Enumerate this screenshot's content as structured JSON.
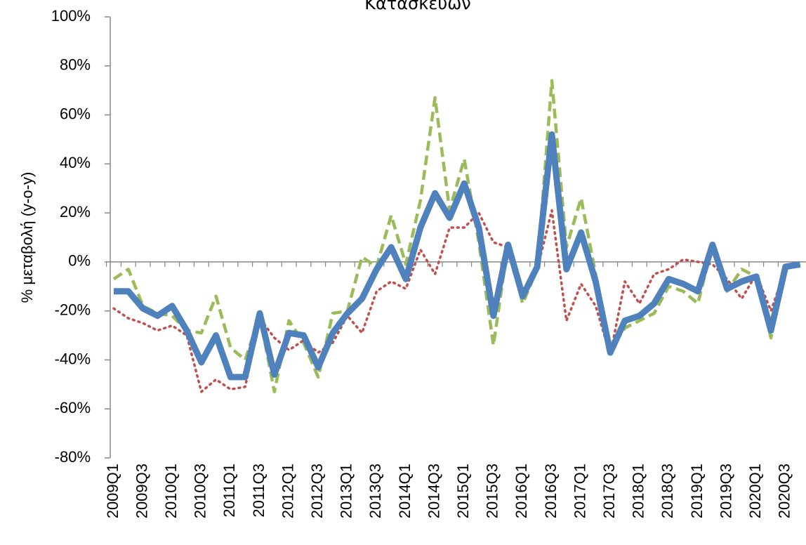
{
  "chart_data": {
    "type": "line",
    "title": "Κατασκευών",
    "y_label": "% μεταβολή (y-o-y)",
    "categories": [
      "2009Q1",
      null,
      "2009Q3",
      null,
      "2010Q1",
      null,
      "2010Q3",
      null,
      "2011Q1",
      null,
      "2011Q3",
      null,
      "2012Q1",
      null,
      "2012Q3",
      null,
      "2013Q1",
      null,
      "2013Q3",
      null,
      "2014Q1",
      null,
      "2014Q3",
      null,
      "2015Q1",
      null,
      "2015Q3",
      null,
      "2016Q1",
      null,
      "2016Q3",
      null,
      "2017Q1",
      null,
      "2017Q3",
      null,
      "2018Q1",
      null,
      "2018Q3",
      null,
      "2019Q1",
      null,
      "2019Q3",
      null,
      "2020Q1",
      null,
      "2020Q3",
      null
    ],
    "series": [
      {
        "color": "#4f81bd",
        "style": "solid",
        "values": [
          -12,
          -12,
          -19,
          -22,
          -18,
          -28,
          -41,
          -30,
          -47,
          -47,
          -21,
          -46,
          -29,
          -30,
          -43,
          -29,
          -21,
          -15,
          -3,
          6,
          -7,
          14,
          28,
          18,
          32,
          14,
          -22,
          7,
          -14,
          -2,
          52,
          -3,
          12,
          -8,
          -37,
          -24,
          -22,
          -17,
          -7,
          -9,
          -12,
          7,
          -11,
          -8,
          -6,
          -28,
          -2,
          -1
        ]
      },
      {
        "color": "#c0504d",
        "style": "dotted",
        "values": [
          -19,
          -23,
          -25,
          -28,
          -26,
          -30,
          -53,
          -48,
          -52,
          -51,
          -23,
          -31,
          -36,
          -32,
          -37,
          -33,
          -22,
          -29,
          -12,
          -8,
          -11,
          5,
          -5,
          14,
          14,
          20,
          8,
          6,
          -13,
          -3,
          21,
          -24,
          -9,
          -18,
          -38,
          -8,
          -17,
          -5,
          -3,
          1,
          0,
          -1,
          -7,
          -15,
          -5,
          -20,
          -3,
          -1
        ]
      },
      {
        "color": "#9bbb59",
        "style": "dashed",
        "values": [
          -7,
          -3,
          -18,
          -21,
          -22,
          -28,
          -29,
          -14,
          -35,
          -40,
          -22,
          -53,
          -24,
          -33,
          -47,
          -21,
          -20,
          2,
          -2,
          19,
          -1,
          25,
          67,
          21,
          42,
          8,
          -34,
          7,
          -17,
          -3,
          74,
          6,
          26,
          -5,
          -36,
          -27,
          -24,
          -21,
          -10,
          -12,
          -17,
          7,
          -12,
          -3,
          -6,
          -31,
          -2,
          -1
        ]
      }
    ],
    "ylim": [
      -80,
      100
    ],
    "yticks": [
      {
        "value": -80,
        "label": "-80%"
      },
      {
        "value": -60,
        "label": "-60%"
      },
      {
        "value": -40,
        "label": "-40%"
      },
      {
        "value": -20,
        "label": "-20%"
      },
      {
        "value": 0,
        "label": "0%"
      },
      {
        "value": 20,
        "label": "20%"
      },
      {
        "value": 40,
        "label": "40%"
      },
      {
        "value": 60,
        "label": "60%"
      },
      {
        "value": 80,
        "label": "80%"
      },
      {
        "value": 100,
        "label": "100%"
      }
    ]
  }
}
